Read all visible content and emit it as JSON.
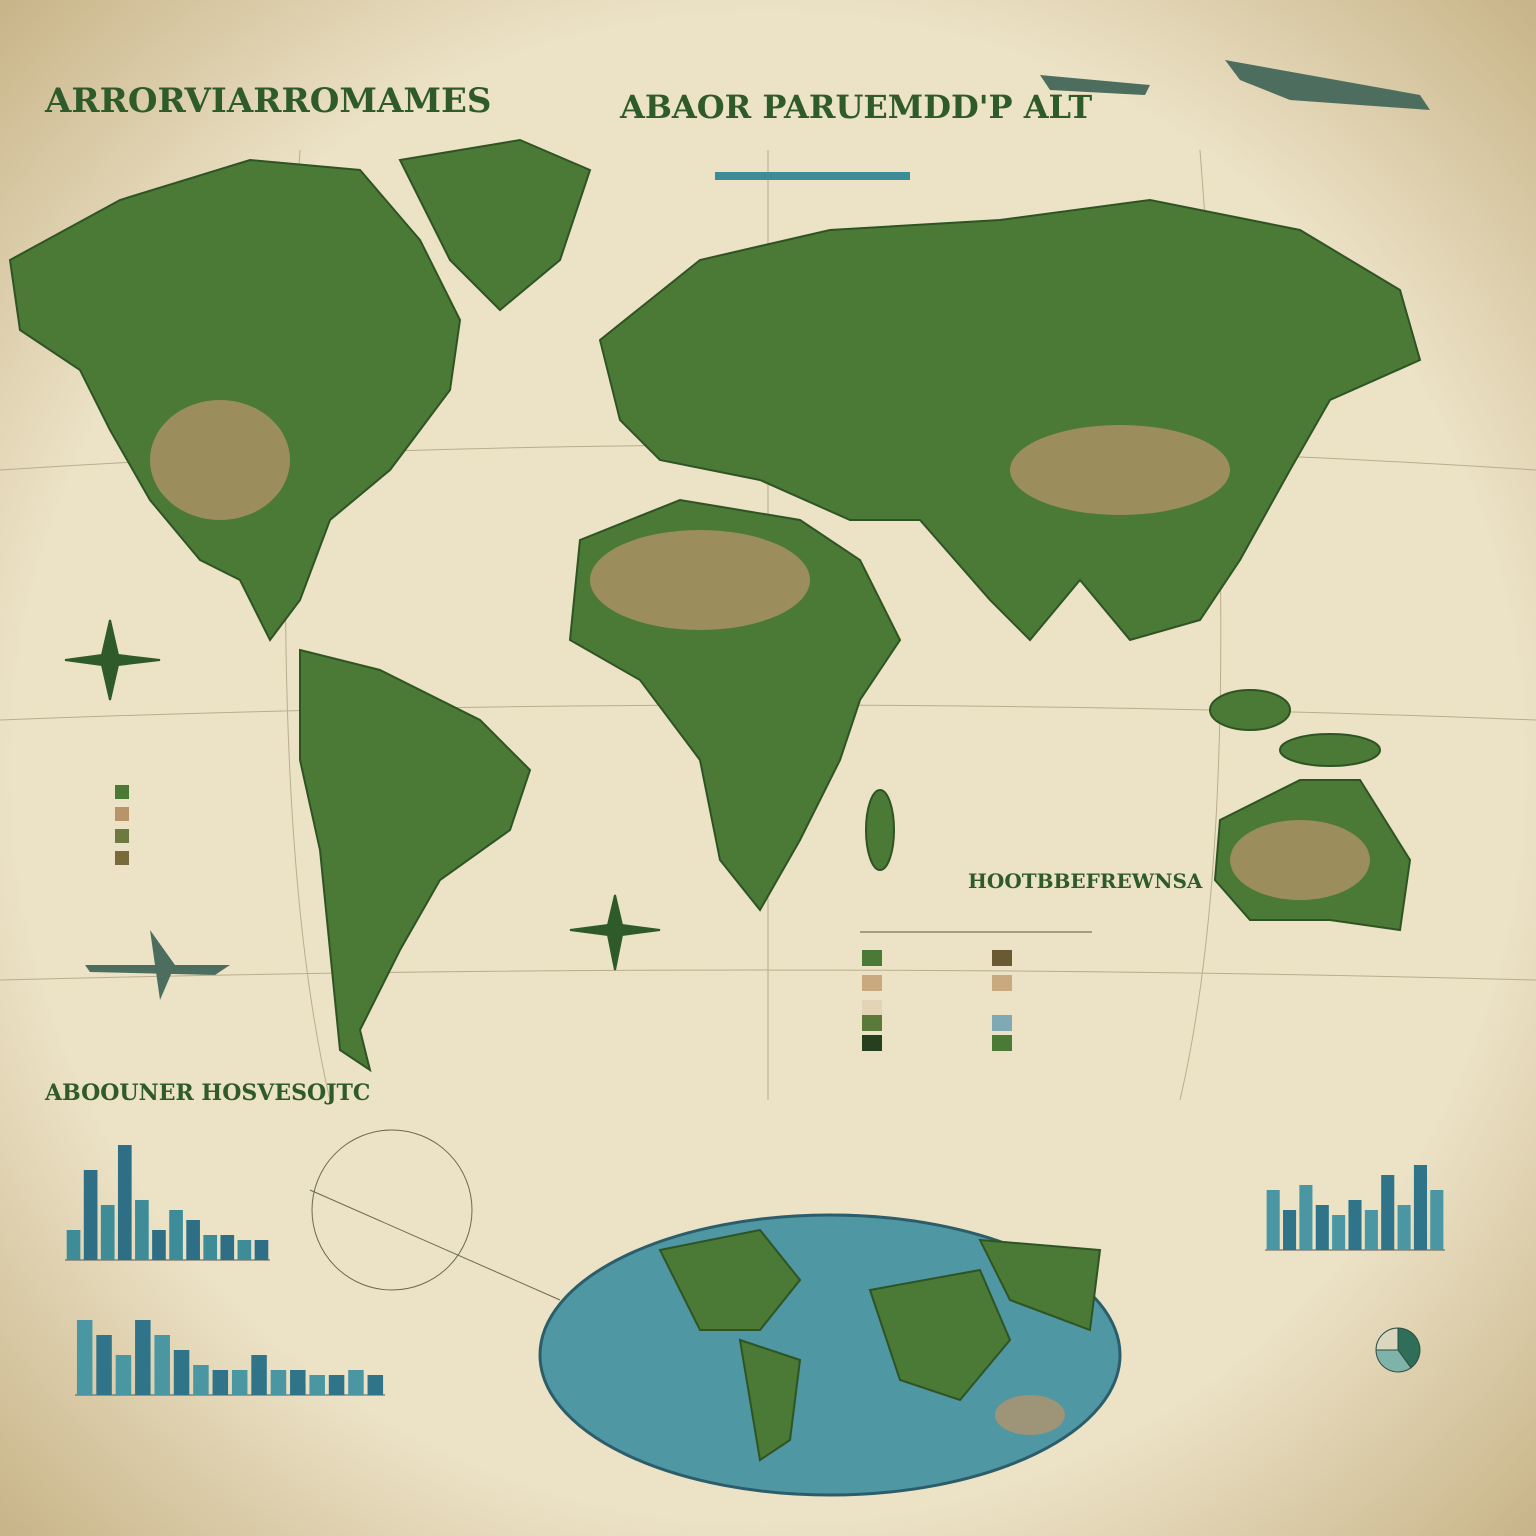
{
  "header": {
    "title": "ARRORVIARROMAMES"
  },
  "map": {
    "title": "ABAOR PARUEMDD'P ALT"
  },
  "legend": {
    "title": "HOOTBBEFREWNSA"
  },
  "stats": {
    "title": "ABOOUNER HOSVESOJTC"
  },
  "bar_charts": [
    {
      "values": [
        30,
        90,
        55,
        115,
        60,
        30,
        50,
        40,
        25,
        25,
        20,
        20
      ],
      "colors": [
        "#3f8c99",
        "#2e6f86"
      ]
    },
    {
      "values": [
        75,
        60,
        40,
        75,
        60,
        45,
        30,
        25,
        25,
        40,
        25,
        25,
        20,
        20,
        25,
        20
      ],
      "colors": [
        "#4a96a3",
        "#2f7488"
      ]
    },
    {
      "values": [
        60,
        40,
        65,
        45,
        35,
        50,
        40,
        75,
        45,
        85,
        60
      ],
      "colors": [
        "#4a96a3",
        "#2f7488"
      ]
    }
  ],
  "pie": {
    "values": [
      40,
      35,
      25
    ],
    "colors": [
      "#2f6f5a",
      "#7fb2a8",
      "#d9d7c0"
    ]
  }
}
